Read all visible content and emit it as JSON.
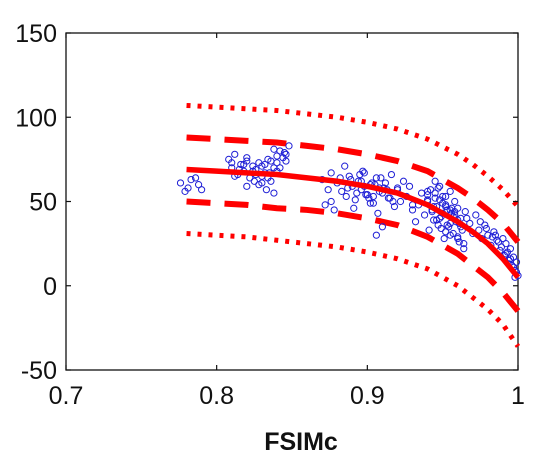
{
  "chart_data": {
    "type": "scatter",
    "title": "",
    "xlabel": "FSIMc",
    "ylabel": "",
    "xlim": [
      0.7,
      1.0
    ],
    "ylim": [
      -50,
      150
    ],
    "xticks": [
      0.7,
      0.8,
      0.9,
      1.0
    ],
    "xtick_labels": [
      "0.7",
      "0.8",
      "0.9",
      "1"
    ],
    "yticks": [
      -50,
      0,
      50,
      100,
      150
    ],
    "ytick_labels": [
      "-50",
      "0",
      "50",
      "100",
      "150"
    ],
    "grid": false,
    "colors": {
      "points": "#1f1fd6",
      "fit": "#ff0000",
      "axes": "#111111"
    },
    "fit_curve": {
      "style": "solid",
      "x": [
        0.78,
        0.8,
        0.82,
        0.84,
        0.86,
        0.88,
        0.9,
        0.92,
        0.94,
        0.96,
        0.97,
        0.98,
        0.99,
        1.0
      ],
      "y": [
        69,
        68,
        67,
        66,
        64,
        62,
        59,
        55,
        48,
        38,
        32,
        25,
        16,
        5
      ]
    },
    "inner_bounds": {
      "style": "dashed",
      "upper": {
        "x": [
          0.78,
          0.8,
          0.82,
          0.84,
          0.86,
          0.88,
          0.9,
          0.92,
          0.94,
          0.96,
          0.97,
          0.98,
          0.99,
          1.0
        ],
        "y": [
          88,
          87,
          86,
          85,
          83,
          81,
          78,
          74,
          68,
          58,
          52,
          45,
          37,
          26
        ]
      },
      "lower": {
        "x": [
          0.78,
          0.8,
          0.82,
          0.84,
          0.86,
          0.88,
          0.9,
          0.92,
          0.94,
          0.96,
          0.97,
          0.98,
          0.99,
          1.0
        ],
        "y": [
          50,
          49,
          48,
          46,
          45,
          43,
          40,
          36,
          29,
          19,
          12,
          5,
          -4,
          -15
        ]
      }
    },
    "outer_bounds": {
      "style": "dotted",
      "upper": {
        "x": [
          0.78,
          0.8,
          0.82,
          0.84,
          0.86,
          0.88,
          0.9,
          0.92,
          0.94,
          0.96,
          0.97,
          0.98,
          0.99,
          1.0
        ],
        "y": [
          107,
          106,
          105,
          104,
          102,
          100,
          97,
          93,
          87,
          78,
          72,
          65,
          57,
          47
        ]
      },
      "lower": {
        "x": [
          0.78,
          0.8,
          0.82,
          0.84,
          0.86,
          0.88,
          0.9,
          0.92,
          0.94,
          0.96,
          0.97,
          0.98,
          0.99,
          1.0
        ],
        "y": [
          31,
          30,
          29,
          27,
          25,
          23,
          20,
          16,
          10,
          0,
          -7,
          -14,
          -23,
          -36
        ]
      }
    },
    "points": {
      "x": [
        0.776,
        0.779,
        0.781,
        0.783,
        0.786,
        0.788,
        0.79,
        0.808,
        0.81,
        0.812,
        0.814,
        0.816,
        0.818,
        0.82,
        0.822,
        0.824,
        0.826,
        0.828,
        0.83,
        0.832,
        0.834,
        0.836,
        0.838,
        0.84,
        0.842,
        0.844,
        0.846,
        0.848,
        0.81,
        0.815,
        0.82,
        0.825,
        0.83,
        0.835,
        0.84,
        0.845,
        0.812,
        0.818,
        0.824,
        0.83,
        0.836,
        0.842,
        0.82,
        0.826,
        0.832,
        0.838,
        0.834,
        0.84,
        0.846,
        0.828,
        0.833,
        0.838,
        0.87,
        0.872,
        0.874,
        0.876,
        0.878,
        0.88,
        0.883,
        0.886,
        0.888,
        0.89,
        0.892,
        0.894,
        0.896,
        0.898,
        0.9,
        0.902,
        0.904,
        0.906,
        0.908,
        0.91,
        0.912,
        0.914,
        0.916,
        0.918,
        0.92,
        0.922,
        0.924,
        0.926,
        0.928,
        0.93,
        0.885,
        0.889,
        0.893,
        0.897,
        0.901,
        0.905,
        0.909,
        0.913,
        0.917,
        0.887,
        0.891,
        0.895,
        0.899,
        0.903,
        0.907,
        0.911,
        0.896,
        0.902,
        0.908,
        0.898,
        0.904,
        0.91,
        0.906,
        0.876,
        0.882,
        0.9,
        0.92,
        0.915,
        0.93,
        0.932,
        0.934,
        0.936,
        0.938,
        0.94,
        0.941,
        0.942,
        0.943,
        0.944,
        0.945,
        0.946,
        0.947,
        0.948,
        0.949,
        0.95,
        0.951,
        0.952,
        0.953,
        0.954,
        0.955,
        0.956,
        0.957,
        0.958,
        0.959,
        0.96,
        0.961,
        0.962,
        0.963,
        0.964,
        0.965,
        0.94,
        0.943,
        0.946,
        0.949,
        0.952,
        0.955,
        0.958,
        0.961,
        0.964,
        0.94,
        0.944,
        0.948,
        0.952,
        0.956,
        0.96,
        0.945,
        0.95,
        0.955,
        0.96,
        0.948,
        0.953,
        0.958,
        0.947,
        0.952,
        0.957,
        0.95,
        0.955,
        0.96,
        0.945,
        0.94,
        0.962,
        0.966,
        0.968,
        0.97,
        0.972,
        0.974,
        0.976,
        0.978,
        0.98,
        0.982,
        0.984,
        0.986,
        0.988,
        0.99,
        0.991,
        0.992,
        0.993,
        0.994,
        0.995,
        0.996,
        0.997,
        0.998,
        0.999,
        1.0,
        0.975,
        0.979,
        0.983,
        0.987,
        0.989,
        0.992,
        0.995,
        0.997,
        0.999,
        0.985,
        0.994,
        0.998
      ],
      "y": [
        61,
        56,
        58,
        63,
        64,
        60,
        57,
        75,
        70,
        78,
        66,
        72,
        68,
        74,
        64,
        71,
        69,
        73,
        65,
        67,
        75,
        62,
        70,
        77,
        80,
        76,
        78,
        83,
        73,
        69,
        76,
        62,
        71,
        67,
        73,
        79,
        65,
        72,
        68,
        61,
        74,
        70,
        59,
        66,
        72,
        81,
        64,
        68,
        74,
        60,
        57,
        55,
        63,
        48,
        57,
        50,
        45,
        61,
        56,
        53,
        65,
        59,
        51,
        62,
        57,
        67,
        54,
        60,
        49,
        64,
        58,
        55,
        61,
        52,
        66,
        47,
        57,
        50,
        62,
        53,
        59,
        48,
        71,
        63,
        55,
        68,
        52,
        60,
        64,
        57,
        50,
        58,
        46,
        66,
        54,
        61,
        43,
        58,
        62,
        49,
        56,
        59,
        53,
        35,
        30,
        67,
        64,
        54,
        58,
        52,
        45,
        38,
        48,
        55,
        42,
        50,
        33,
        57,
        44,
        39,
        52,
        47,
        36,
        59,
        41,
        49,
        28,
        53,
        45,
        35,
        56,
        43,
        31,
        50,
        38,
        46,
        26,
        40,
        33,
        22,
        44,
        51,
        45,
        39,
        34,
        48,
        30,
        42,
        37,
        25,
        54,
        47,
        40,
        32,
        46,
        28,
        55,
        43,
        37,
        29,
        51,
        36,
        44,
        58,
        47,
        41,
        53,
        45,
        39,
        62,
        56,
        35,
        40,
        37,
        31,
        42,
        33,
        28,
        36,
        30,
        24,
        32,
        27,
        21,
        28,
        18,
        25,
        20,
        15,
        22,
        12,
        17,
        9,
        14,
        6,
        38,
        34,
        29,
        26,
        23,
        19,
        16,
        11,
        8,
        30,
        13,
        5
      ]
    }
  }
}
